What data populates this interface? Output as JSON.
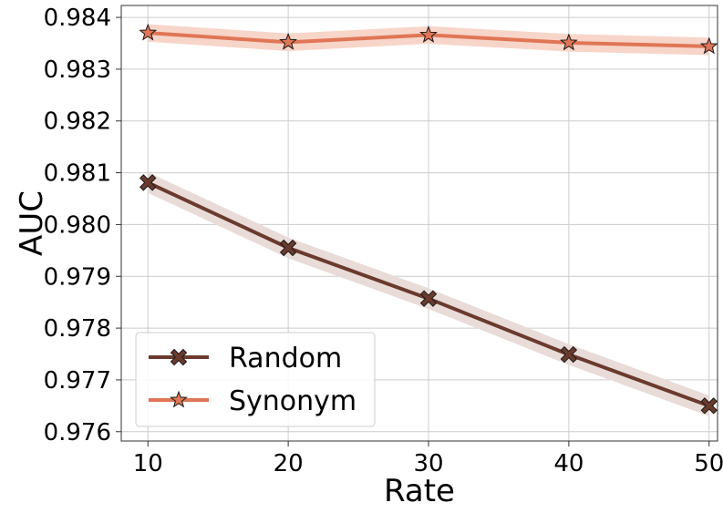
{
  "chart_data": {
    "type": "line",
    "xlabel": "Rate",
    "ylabel": "AUC",
    "x": [
      10,
      20,
      30,
      40,
      50
    ],
    "xticks": [
      "10",
      "20",
      "30",
      "40",
      "50"
    ],
    "yticks": [
      "0.976",
      "0.977",
      "0.978",
      "0.979",
      "0.980",
      "0.981",
      "0.982",
      "0.983",
      "0.984"
    ],
    "ylim": [
      0.97582,
      0.98423
    ],
    "xlim": [
      8.1,
      50.6
    ],
    "grid": true,
    "legend_position": "lower-left",
    "series": [
      {
        "name": "Random",
        "values": [
          0.98081,
          0.97955,
          0.97857,
          0.97749,
          0.9765
        ],
        "band": [
          0.0002,
          0.0002,
          0.0002,
          0.0002,
          0.0002
        ],
        "color": "#6b3a2e",
        "band_color": "#e9dcd8",
        "marker": "x-marker"
      },
      {
        "name": "Synonym",
        "values": [
          0.9837,
          0.98352,
          0.98366,
          0.98351,
          0.98344
        ],
        "band": [
          0.00017,
          0.00017,
          0.00017,
          0.00017,
          0.00017
        ],
        "color": "#e07656",
        "band_color": "#f7d5c9",
        "marker": "star-marker"
      }
    ]
  }
}
